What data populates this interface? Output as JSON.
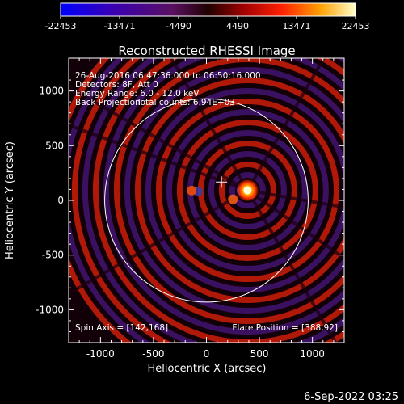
{
  "colorbar": {
    "tick_labels": [
      "-22453",
      "-13471",
      "-4490",
      "4490",
      "13471",
      "22453"
    ],
    "min": -22453,
    "max": 22453
  },
  "title": "Reconstructed RHESSI Image",
  "annotations": {
    "time_range": "26-Aug-2016 06:47:36.000 to 06:50:16.000",
    "detectors": "Detectors: 8F, Att 0",
    "energy_range": "Energy Range: 6.0 - 12.0 keV",
    "method": "Back Projection",
    "total_counts": "Total counts: 6.94E+03",
    "spin_axis": "Spin Axis = [142,168]",
    "flare_position": "Flare Position = [388,92]"
  },
  "axes": {
    "xlabel": "Heliocentric X (arcsec)",
    "ylabel": "Heliocentric Y (arcsec)",
    "xlim": [
      -1300,
      1300
    ],
    "ylim": [
      -1300,
      1300
    ],
    "x_ticks": [
      -1000,
      -500,
      0,
      500,
      1000
    ],
    "y_ticks": [
      -1000,
      -500,
      0,
      500,
      1000
    ],
    "x_tick_labels": [
      "-1000",
      "-500",
      "0",
      "500",
      "1000"
    ],
    "y_tick_labels": [
      "-1000",
      "-500",
      "0",
      "500",
      "1000"
    ]
  },
  "image": {
    "flare_center": [
      388,
      92
    ],
    "spin_axis": [
      142,
      168
    ],
    "solar_radius_arcsec": 960,
    "limb_color": "#ffffff",
    "marker_color": "#ffffff"
  },
  "footer": {
    "date": "6-Sep-2022 03:25"
  }
}
